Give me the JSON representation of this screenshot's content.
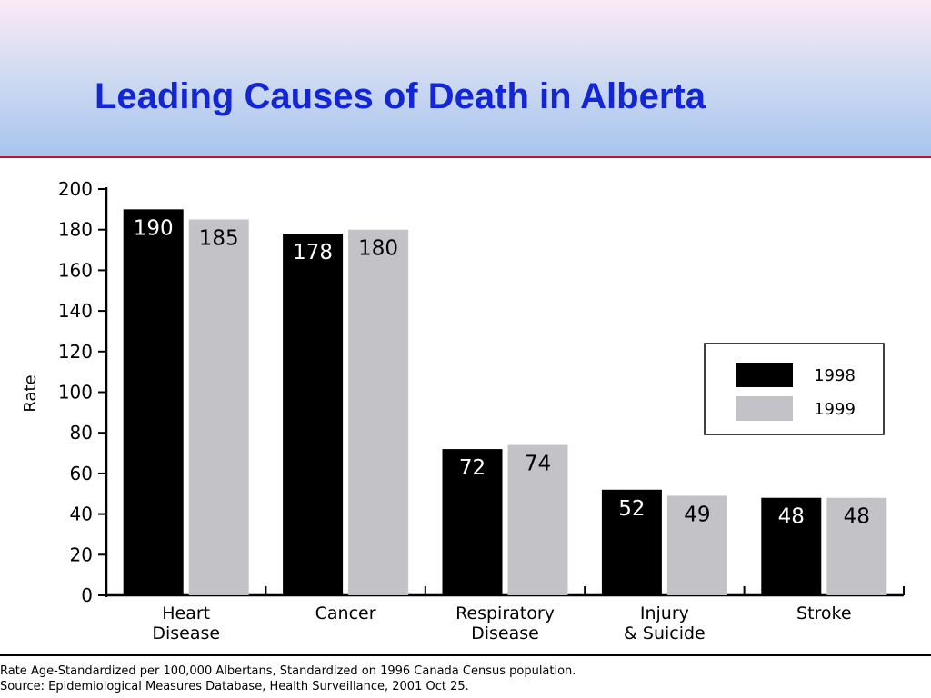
{
  "slide": {
    "title": "Leading Causes of Death in Alberta",
    "footnote_1": "Rate Age-Standardized per 100,000 Albertans, Standardized on 1996 Canada Census population.",
    "footnote_2": "Source: Epidemiological Measures Database, Health Surveillance, 2001 Oct 25."
  },
  "colors": {
    "series_1998": "#000000",
    "series_1999": "#c3c2c7",
    "title": "#1226d6",
    "rule": "#c0143c"
  },
  "chart_data": {
    "type": "bar",
    "title": "Leading Causes of Death in Alberta",
    "ylabel": "Rate",
    "xlabel": "",
    "ylim": [
      0,
      200
    ],
    "yticks": [
      0,
      20,
      40,
      60,
      80,
      100,
      120,
      140,
      160,
      180,
      200
    ],
    "categories": [
      [
        "Heart",
        "Disease"
      ],
      [
        "Cancer"
      ],
      [
        "Respiratory",
        "Disease"
      ],
      [
        "Injury",
        "& Suicide"
      ],
      [
        "Stroke"
      ]
    ],
    "series": [
      {
        "name": "1998",
        "values": [
          190,
          178,
          72,
          52,
          48
        ],
        "color": "#000000"
      },
      {
        "name": "1999",
        "values": [
          185,
          180,
          74,
          49,
          48
        ],
        "color": "#c3c2c7"
      }
    ],
    "legend": {
      "placement": "right"
    },
    "grid": false
  }
}
